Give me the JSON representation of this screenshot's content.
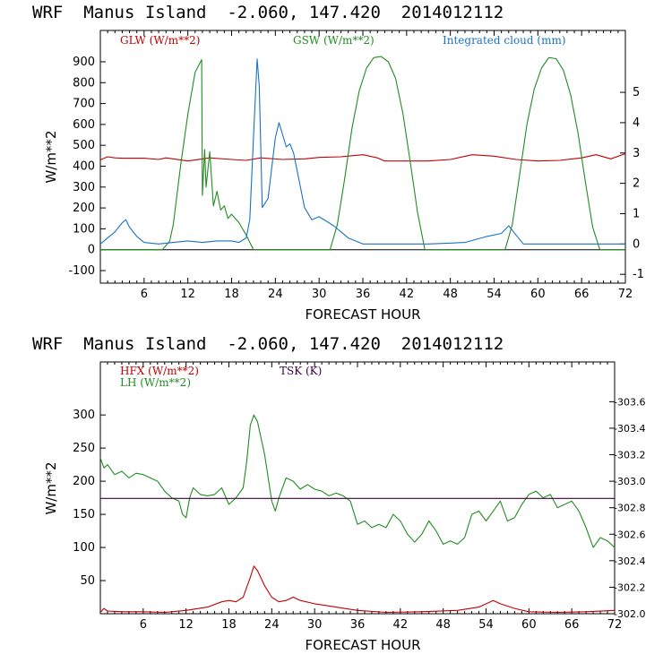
{
  "chart_data": [
    {
      "type": "line",
      "title": "WRF  Manus Island  -2.060, 147.420  2014012112",
      "xlabel": "FORECAST HOUR",
      "ylabel": "W/m**2",
      "xlim": [
        0,
        72
      ],
      "xticks": [
        6,
        12,
        18,
        24,
        30,
        36,
        42,
        48,
        54,
        60,
        66,
        72
      ],
      "ylim": [
        -160,
        1050
      ],
      "yticks": [
        -100,
        0,
        100,
        200,
        300,
        400,
        500,
        600,
        700,
        800,
        900
      ],
      "y2label": "Integrated cloud (mm)",
      "y2lim": [
        -1.29,
        7.04
      ],
      "y2ticks": [
        -1,
        0,
        1,
        2,
        3,
        4,
        5
      ],
      "zero_line": 0,
      "series": [
        {
          "name": "GLW (W/m**2)",
          "axis": "left",
          "color": "#c00000",
          "x": [
            0,
            1,
            2,
            3,
            6,
            8,
            9,
            12,
            15,
            18,
            20,
            22,
            25,
            28,
            30,
            33,
            36,
            38,
            39,
            42,
            45,
            48,
            51,
            54,
            57,
            60,
            63,
            66,
            68,
            70,
            72
          ],
          "y": [
            430,
            445,
            440,
            438,
            438,
            432,
            440,
            425,
            440,
            432,
            428,
            440,
            432,
            435,
            442,
            445,
            455,
            440,
            425,
            425,
            425,
            432,
            455,
            448,
            432,
            425,
            428,
            440,
            455,
            435,
            460
          ]
        },
        {
          "name": "GSW (W/m**2)",
          "axis": "left",
          "color": "#218c21",
          "x": [
            0,
            8.5,
            9.5,
            10,
            11,
            12,
            13,
            13.9,
            14,
            14.3,
            14.5,
            15,
            15.5,
            16,
            16.5,
            17,
            17.5,
            18,
            19,
            20,
            21,
            31.5,
            32.5,
            33.5,
            34.5,
            35.5,
            36.5,
            37.5,
            38.5,
            39.5,
            40.5,
            41.5,
            42.5,
            43.5,
            44.5,
            55.5,
            56.5,
            57.5,
            58.5,
            59.5,
            60.5,
            61.5,
            62.5,
            63.5,
            64.5,
            65.5,
            66.5,
            67.5,
            68.5,
            72
          ],
          "y": [
            0,
            0,
            40,
            120,
            400,
            650,
            850,
            910,
            260,
            480,
            300,
            470,
            210,
            280,
            190,
            210,
            150,
            170,
            130,
            70,
            0,
            0,
            120,
            340,
            580,
            760,
            870,
            920,
            925,
            900,
            820,
            650,
            420,
            180,
            0,
            0,
            120,
            360,
            600,
            770,
            870,
            920,
            915,
            860,
            740,
            560,
            330,
            110,
            0,
            0
          ]
        },
        {
          "name": "Integrated cloud (mm)",
          "axis": "right",
          "color": "#1a72c8",
          "x": [
            0,
            1,
            2,
            3,
            3.5,
            4,
            5,
            6,
            8,
            10,
            12,
            14,
            16,
            18,
            19,
            20,
            20.5,
            21,
            21.5,
            21.8,
            22.2,
            23,
            24,
            24.5,
            25,
            25.5,
            26,
            26.5,
            27,
            28,
            29,
            30,
            31,
            32,
            33,
            34,
            36,
            45,
            50,
            53,
            55,
            56,
            57,
            58,
            72
          ],
          "y": [
            0,
            0.2,
            0.4,
            0.7,
            0.8,
            0.55,
            0.25,
            0.05,
            0,
            0.05,
            0.1,
            0.05,
            0.1,
            0.1,
            0.05,
            0.2,
            0.8,
            3.5,
            6.1,
            5.2,
            1.2,
            1.5,
            3.5,
            4.0,
            3.6,
            3.2,
            3.3,
            3.0,
            2.4,
            1.2,
            0.8,
            0.9,
            0.75,
            0.6,
            0.4,
            0.2,
            0,
            0,
            0.05,
            0.25,
            0.35,
            0.6,
            0.3,
            0,
            0
          ]
        }
      ]
    },
    {
      "type": "line",
      "title": "WRF  Manus Island  -2.060, 147.420  2014012112",
      "xlabel": "FORECAST HOUR",
      "ylabel": "W/m**2",
      "xlim": [
        0,
        72
      ],
      "xticks": [
        6,
        12,
        18,
        24,
        30,
        36,
        42,
        48,
        54,
        60,
        66,
        72
      ],
      "ylim": [
        0,
        380
      ],
      "yticks": [
        50,
        100,
        150,
        200,
        250,
        300
      ],
      "y2label": "TSK (K)",
      "y2lim": [
        302.0,
        303.9
      ],
      "y2ticks": [
        "302.0",
        "302.2",
        "302.4",
        "302.6",
        "302.8",
        "303.0",
        "303.2",
        "303.4",
        "303.6"
      ],
      "tsk_value": 302.87,
      "series": [
        {
          "name": "HFX (W/m**2)",
          "axis": "left",
          "color": "#c00000",
          "x": [
            0,
            0.5,
            1,
            3,
            6,
            9,
            12,
            15,
            17,
            18,
            19,
            20,
            21,
            21.5,
            22,
            23,
            24,
            25,
            26,
            27,
            28,
            30,
            33,
            36,
            40,
            45,
            50,
            53,
            55,
            56,
            58,
            60,
            64,
            68,
            72
          ],
          "y": [
            2,
            8,
            4,
            3,
            3,
            2,
            5,
            10,
            18,
            20,
            18,
            25,
            55,
            72,
            65,
            42,
            25,
            18,
            20,
            25,
            20,
            15,
            10,
            5,
            2,
            3,
            5,
            10,
            20,
            15,
            8,
            3,
            2,
            3,
            5
          ]
        },
        {
          "name": "LH (W/m**2)",
          "axis": "left",
          "color": "#218c21",
          "x": [
            0,
            0.5,
            1,
            2,
            3,
            4,
            5,
            6,
            7,
            8,
            9,
            10,
            11,
            11.5,
            12,
            12.5,
            13,
            14,
            15,
            16,
            17,
            18,
            19,
            20,
            20.5,
            21,
            21.5,
            22,
            23,
            24,
            24.5,
            25,
            26,
            27,
            28,
            29,
            30,
            31,
            32,
            33,
            34,
            35,
            36,
            37,
            38,
            39,
            40,
            41,
            42,
            43,
            44,
            45,
            46,
            47,
            48,
            49,
            50,
            51,
            52,
            53,
            54,
            55,
            56,
            57,
            58,
            59,
            60,
            61,
            62,
            63,
            64,
            65,
            66,
            67,
            68,
            69,
            70,
            71,
            72
          ],
          "y": [
            235,
            220,
            225,
            210,
            215,
            205,
            212,
            210,
            205,
            200,
            185,
            175,
            170,
            150,
            145,
            175,
            190,
            180,
            178,
            180,
            190,
            165,
            175,
            190,
            230,
            285,
            300,
            290,
            240,
            170,
            155,
            175,
            205,
            200,
            188,
            195,
            188,
            185,
            178,
            182,
            178,
            170,
            135,
            140,
            130,
            135,
            130,
            150,
            140,
            120,
            108,
            120,
            140,
            125,
            105,
            110,
            105,
            115,
            150,
            155,
            140,
            155,
            170,
            140,
            145,
            165,
            180,
            185,
            175,
            180,
            160,
            165,
            170,
            155,
            130,
            100,
            115,
            110,
            100
          ]
        },
        {
          "name": "TSK (K)",
          "axis": "right",
          "color": "#400040",
          "x": [
            0,
            72
          ],
          "y": [
            302.87,
            302.87
          ]
        }
      ]
    }
  ]
}
